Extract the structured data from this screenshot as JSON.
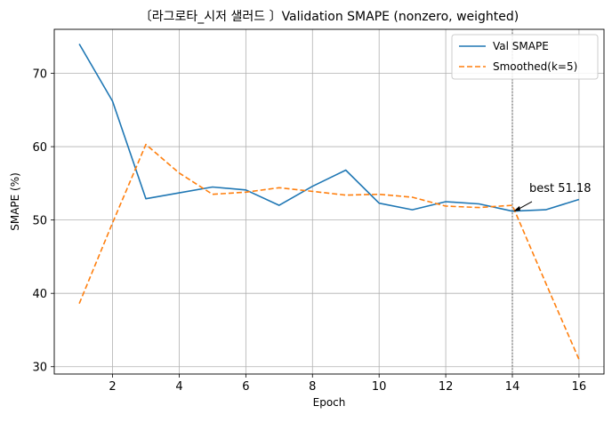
{
  "chart_data": {
    "type": "line",
    "title": "〔라그로타_시저 샐러드 〕Validation SMAPE (nonzero, weighted)",
    "xlabel": "Epoch",
    "ylabel": "SMAPE (%)",
    "x": [
      1,
      2,
      3,
      4,
      5,
      6,
      7,
      8,
      9,
      10,
      11,
      12,
      13,
      14,
      15,
      16
    ],
    "xlim": [
      0.25,
      16.75
    ],
    "ylim": [
      29,
      76
    ],
    "xticks": [
      2,
      4,
      6,
      8,
      10,
      12,
      14,
      16
    ],
    "yticks": [
      30,
      40,
      50,
      60,
      70
    ],
    "grid": true,
    "legend_position": "top-right",
    "series": [
      {
        "name": "Val SMAPE",
        "style": "solid",
        "color": "#1f77b4",
        "values": [
          74.0,
          66.2,
          52.9,
          53.7,
          54.5,
          54.1,
          52.0,
          54.6,
          56.8,
          52.3,
          51.4,
          52.5,
          52.2,
          51.2,
          51.4,
          52.8
        ]
      },
      {
        "name": "Smoothed(k=5)",
        "style": "dashed",
        "color": "#ff7f0e",
        "values": [
          38.6,
          49.6,
          60.3,
          56.4,
          53.5,
          53.8,
          54.4,
          53.9,
          53.4,
          53.5,
          53.1,
          51.9,
          51.7,
          52.0,
          41.4,
          31.0
        ]
      }
    ],
    "best_marker": {
      "epoch": 14,
      "value": 51.18
    },
    "annotations": [
      {
        "text": "best 51.18",
        "x": 14,
        "y": 51.18
      }
    ]
  }
}
